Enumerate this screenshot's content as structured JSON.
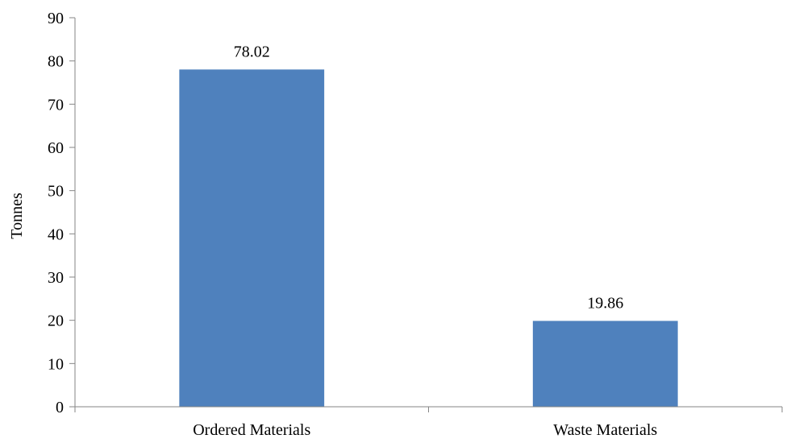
{
  "chart_data": {
    "type": "bar",
    "categories": [
      "Ordered Materials",
      "Waste Materials"
    ],
    "values": [
      78.02,
      19.86
    ],
    "data_labels": [
      "78.02",
      "19.86"
    ],
    "title": "",
    "xlabel": "",
    "ylabel": "Tonnes",
    "ylim": [
      0,
      90
    ],
    "yticks": [
      0,
      10,
      20,
      30,
      40,
      50,
      60,
      70,
      80,
      90
    ],
    "grid": false,
    "legend": "none",
    "bar_color": "#4F81BD",
    "axis_color": "#868686"
  }
}
